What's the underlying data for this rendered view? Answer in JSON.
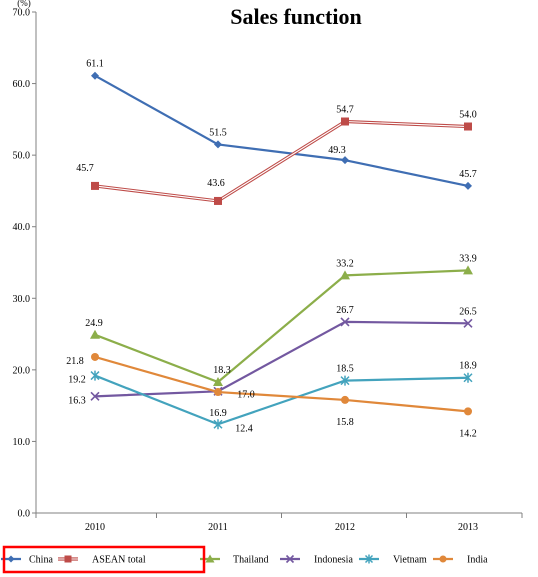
{
  "chart_data": {
    "type": "line",
    "title": "Sales function",
    "unit_label": "(%)",
    "xlabel": "",
    "ylabel": "",
    "categories": [
      "2010",
      "2011",
      "2012",
      "2013"
    ],
    "ylim": [
      0,
      70
    ],
    "yticks": [
      "0.0",
      "10.0",
      "20.0",
      "30.0",
      "40.0",
      "50.0",
      "60.0",
      "70.0"
    ],
    "grid": false,
    "legend_position": "bottom",
    "series": [
      {
        "name": "China",
        "values": [
          61.1,
          51.5,
          49.3,
          45.7
        ],
        "labels": [
          "61.1",
          "51.5",
          "49.3",
          "45.7"
        ],
        "color": "#3f6eb3",
        "marker": "diamond",
        "line_style": "solid"
      },
      {
        "name": "ASEAN total",
        "values": [
          45.7,
          43.6,
          54.7,
          54.0
        ],
        "labels": [
          "45.7",
          "43.6",
          "54.7",
          "54.0"
        ],
        "color": "#be4b48",
        "marker": "square",
        "line_style": "double"
      },
      {
        "name": "Thailand",
        "values": [
          24.9,
          18.3,
          33.2,
          33.9
        ],
        "labels": [
          "24.9",
          "18.3",
          "33.2",
          "33.9"
        ],
        "color": "#8cae4a",
        "marker": "triangle",
        "line_style": "solid"
      },
      {
        "name": "Indonesia",
        "values": [
          16.3,
          17.0,
          26.7,
          26.5
        ],
        "labels": [
          "16.3",
          "17.0",
          "26.7",
          "26.5"
        ],
        "color": "#7358a0",
        "marker": "x",
        "line_style": "solid"
      },
      {
        "name": "Vietnam",
        "values": [
          19.2,
          12.4,
          18.5,
          18.9
        ],
        "labels": [
          "19.2",
          "12.4",
          "18.5",
          "18.9"
        ],
        "color": "#43a3bd",
        "marker": "star",
        "line_style": "solid"
      },
      {
        "name": "India",
        "values": [
          21.8,
          16.9,
          15.8,
          14.2
        ],
        "labels": [
          "21.8",
          "16.9",
          "15.8",
          "14.2"
        ],
        "color": "#e0883a",
        "marker": "circle",
        "line_style": "solid"
      }
    ],
    "legend_highlight_color": "#ff0000",
    "legend_highlighted_series": [
      "China",
      "ASEAN total"
    ]
  }
}
